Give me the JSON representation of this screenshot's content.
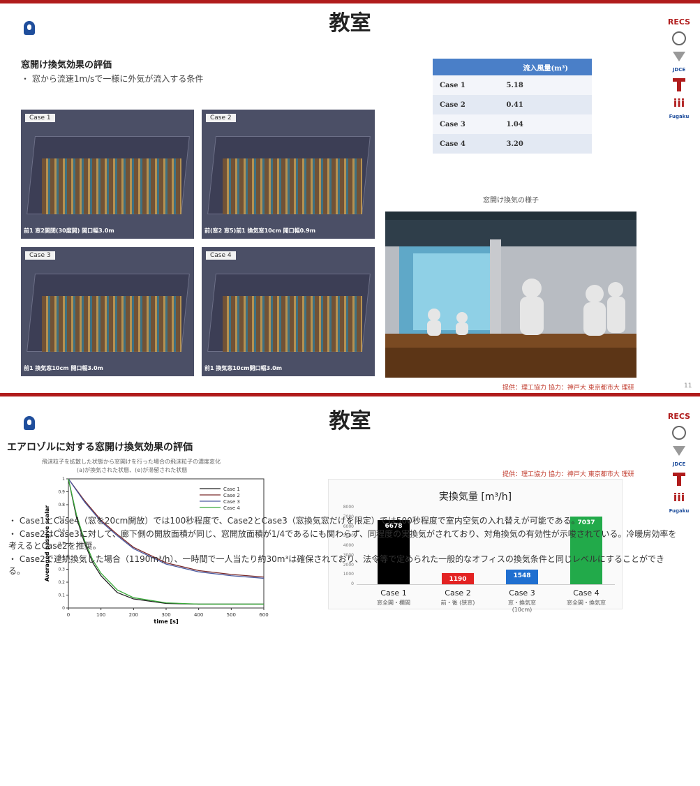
{
  "slide1": {
    "title": "教室",
    "heading": "窓開け換気効果の評価",
    "bullet": "・ 窓から流速1m/sで一様に外気が流入する条件",
    "sims": [
      {
        "case": "Case 1",
        "caption": "前1 窓2開閉(30度開) 開口幅3.0m"
      },
      {
        "case": "Case 2",
        "caption": "前(窓2 窓5)前1 換気窓10cm 開口幅0.9m"
      },
      {
        "case": "Case 3",
        "caption": "前1 換気窓10cm 開口幅3.0m"
      },
      {
        "case": "Case 4",
        "caption": "前1 換気窓10cm開口幅3.0m"
      }
    ],
    "table": {
      "header": [
        "",
        "流入風量(m³)"
      ],
      "rows": [
        [
          "Case 1",
          "5.18"
        ],
        [
          "Case 2",
          "0.41"
        ],
        [
          "Case 3",
          "1.04"
        ],
        [
          "Case 4",
          "3.20"
        ]
      ]
    },
    "photo_caption": "窓開け換気の様子",
    "source": "提供：理工協力 協力：神戸大 東京都市大 理研",
    "page": "11"
  },
  "slide2": {
    "title": "教室",
    "heading": "エアロゾルに対する窓開け換気効果の評価",
    "subtext_line1": "飛沫粒子を拡散した状態から窓開けを行った場合の飛沫粒子の濃度変化",
    "subtext_line2": "(a)が換気された状態、(e)が滞留された状態",
    "source": "提供：理工協力 協力：神戸大 東京都市大 理研",
    "bar_title": "実換気量 [m³/h]",
    "bar_subs": [
      "窓全開・欄間",
      "前・後 (狭窓)",
      "窓・換気窓 (10cm)",
      "窓全開・換気窓"
    ],
    "notes": [
      "・ Case1とCase4（窓を20cm開放）では100秒程度で、Case2とCase3（窓換気窓だけを限定）では500秒程度で室内空気の入れ替えが可能である。",
      "・ Case2はCase3に対して、廊下側の開放面積が同じ、窓開放面積が1/4であるにも関わらず、同程度の実換気がされており、対角換気の有効性が示唆されている。冷暖房効率を考えるとCase2を推奨。",
      "・ Case2で連続換気した場合（1190m³/h）、一時間で一人当たり約30m³は確保されており、法令等で定められた一般的なオフィスの換気条件と同じレベルにすることができる。"
    ]
  },
  "sidebar": [
    "RECS",
    "",
    "",
    "JDCE",
    "",
    "iii",
    "Fugaku"
  ],
  "chart_data": [
    {
      "type": "line",
      "xlabel": "time [s]",
      "ylabel": "Averaged passive scalar",
      "xlim": [
        0,
        600
      ],
      "ylim": [
        0,
        1
      ],
      "xticks": [
        0,
        100,
        200,
        300,
        400,
        500,
        600
      ],
      "yticks": [
        0,
        0.1,
        0.2,
        0.3,
        0.4,
        0.5,
        0.6,
        0.7,
        0.8,
        0.9,
        1
      ],
      "legend_position": "top-right",
      "series": [
        {
          "name": "Case 1",
          "color": "#222222",
          "x": [
            0,
            25,
            50,
            75,
            100,
            150,
            200,
            300,
            400,
            500,
            600
          ],
          "y": [
            1.0,
            0.7,
            0.5,
            0.35,
            0.25,
            0.12,
            0.07,
            0.035,
            0.03,
            0.03,
            0.03
          ]
        },
        {
          "name": "Case 2",
          "color": "#7a2a2a",
          "x": [
            0,
            50,
            100,
            150,
            200,
            300,
            400,
            500,
            600
          ],
          "y": [
            1.0,
            0.83,
            0.68,
            0.57,
            0.47,
            0.35,
            0.29,
            0.26,
            0.24
          ]
        },
        {
          "name": "Case 3",
          "color": "#4a5aa0",
          "x": [
            0,
            50,
            100,
            150,
            200,
            300,
            400,
            500,
            600
          ],
          "y": [
            1.0,
            0.82,
            0.67,
            0.56,
            0.46,
            0.34,
            0.28,
            0.25,
            0.23
          ]
        },
        {
          "name": "Case 4",
          "color": "#3aaa3a",
          "x": [
            0,
            25,
            50,
            75,
            100,
            150,
            200,
            300,
            400,
            500,
            600
          ],
          "y": [
            1.0,
            0.72,
            0.52,
            0.37,
            0.27,
            0.14,
            0.08,
            0.04,
            0.03,
            0.03,
            0.03
          ]
        }
      ]
    },
    {
      "type": "bar",
      "title": "実換気量 [m³/h]",
      "categories": [
        "Case 1",
        "Case 2",
        "Case 3",
        "Case 4"
      ],
      "values": [
        6678,
        1190,
        1548,
        7037
      ],
      "labels": [
        "6678",
        "1190",
        "1548",
        "7037"
      ],
      "colors": [
        "#000000",
        "#e32222",
        "#1f6fd0",
        "#22aa4a"
      ],
      "ylim": [
        0,
        8000
      ]
    }
  ]
}
